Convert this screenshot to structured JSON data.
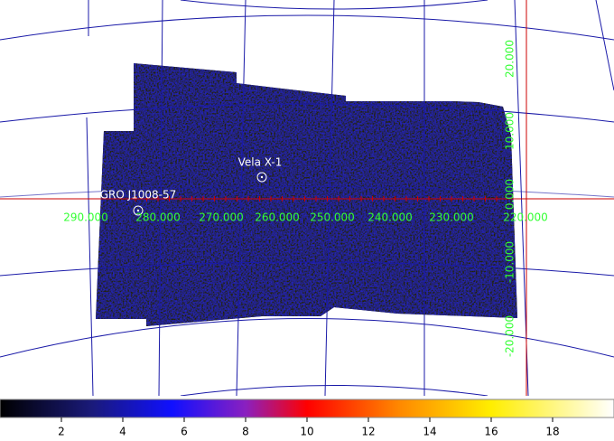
{
  "sources": [
    {
      "label": "Vela X-1"
    },
    {
      "label": "GRO J1008-57"
    }
  ],
  "longitude_labels": [
    {
      "value": 290,
      "label": "290.000"
    },
    {
      "value": 280,
      "label": "280.000"
    },
    {
      "value": 270,
      "label": "270.000"
    },
    {
      "value": 260,
      "label": "260.000"
    },
    {
      "value": 250,
      "label": "250.000"
    },
    {
      "value": 240,
      "label": "240.000"
    },
    {
      "value": 230,
      "label": "230.000"
    },
    {
      "value": 220,
      "label": "220.000"
    }
  ],
  "latitude_labels": [
    {
      "value": 20,
      "label": "20.000"
    },
    {
      "value": 10,
      "label": "10.000"
    },
    {
      "value": 0,
      "label": "0.000"
    },
    {
      "value": -10,
      "label": "-10.000"
    },
    {
      "value": -20,
      "label": "-20.000"
    }
  ],
  "colorbar": {
    "lim": [
      0,
      20
    ],
    "ticks": [
      2,
      4,
      6,
      8,
      10,
      12,
      14,
      16,
      18
    ]
  }
}
